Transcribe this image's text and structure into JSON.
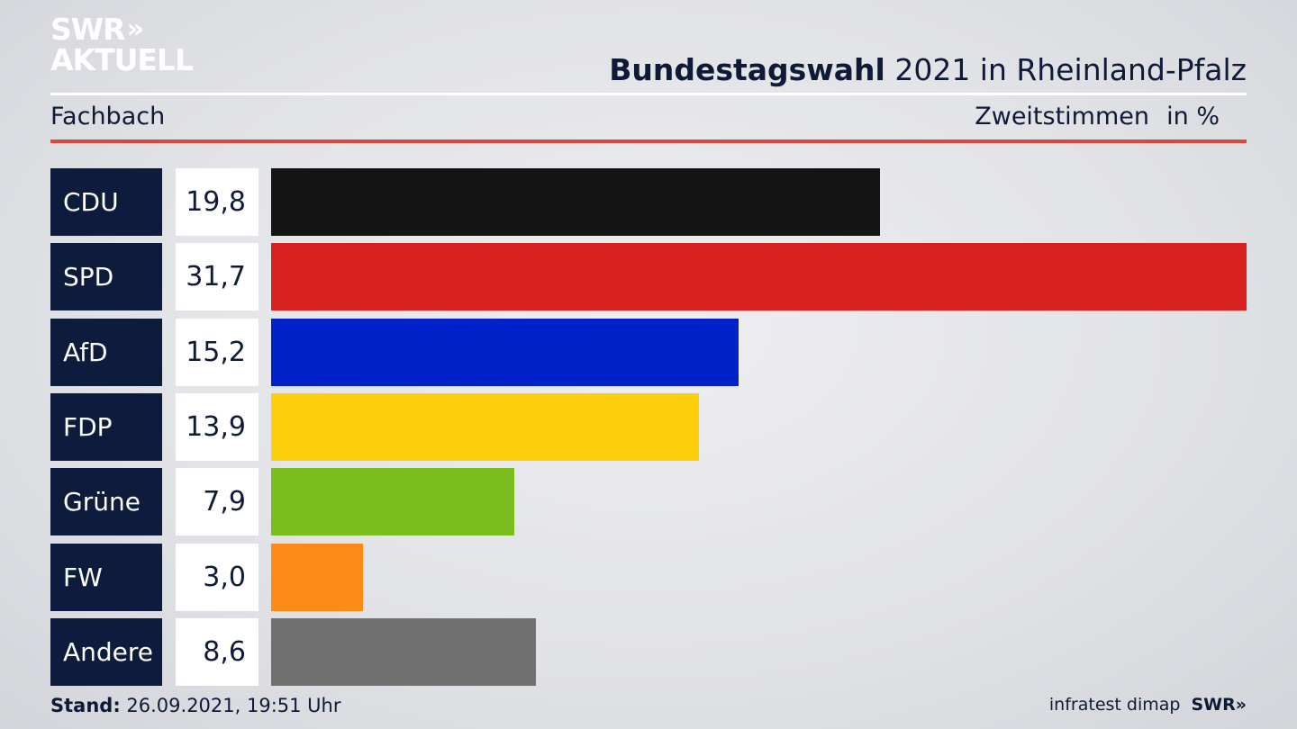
{
  "branding": {
    "logo_line1": "SWR",
    "logo_chevrons": "»",
    "logo_line2": "AKTUELL",
    "footer_source": "infratest dimap",
    "footer_logo": "SWR»"
  },
  "header": {
    "title_bold": "Bundestagswahl",
    "title_rest": " 2021 in Rheinland-Pfalz",
    "subtitle": "Fachbach",
    "vote_type": "Zweitstimmen",
    "unit": "in %"
  },
  "footer": {
    "stand_label": "Stand:",
    "stand_value": " 26.09.2021, 19:51 Uhr"
  },
  "chart_data": {
    "type": "bar",
    "orientation": "horizontal",
    "categories": [
      "CDU",
      "SPD",
      "AfD",
      "FDP",
      "Grüne",
      "FW",
      "Andere"
    ],
    "values": [
      19.8,
      31.7,
      15.2,
      13.9,
      7.9,
      3.0,
      8.6
    ],
    "value_labels": [
      "19,8",
      "31,7",
      "15,2",
      "13,9",
      "7,9",
      "3,0",
      "8,6"
    ],
    "colors": [
      "#141414",
      "#d7201f",
      "#0121c9",
      "#fecd0b",
      "#7abd1c",
      "#fb8b16",
      "#717171"
    ],
    "grid": false
  }
}
